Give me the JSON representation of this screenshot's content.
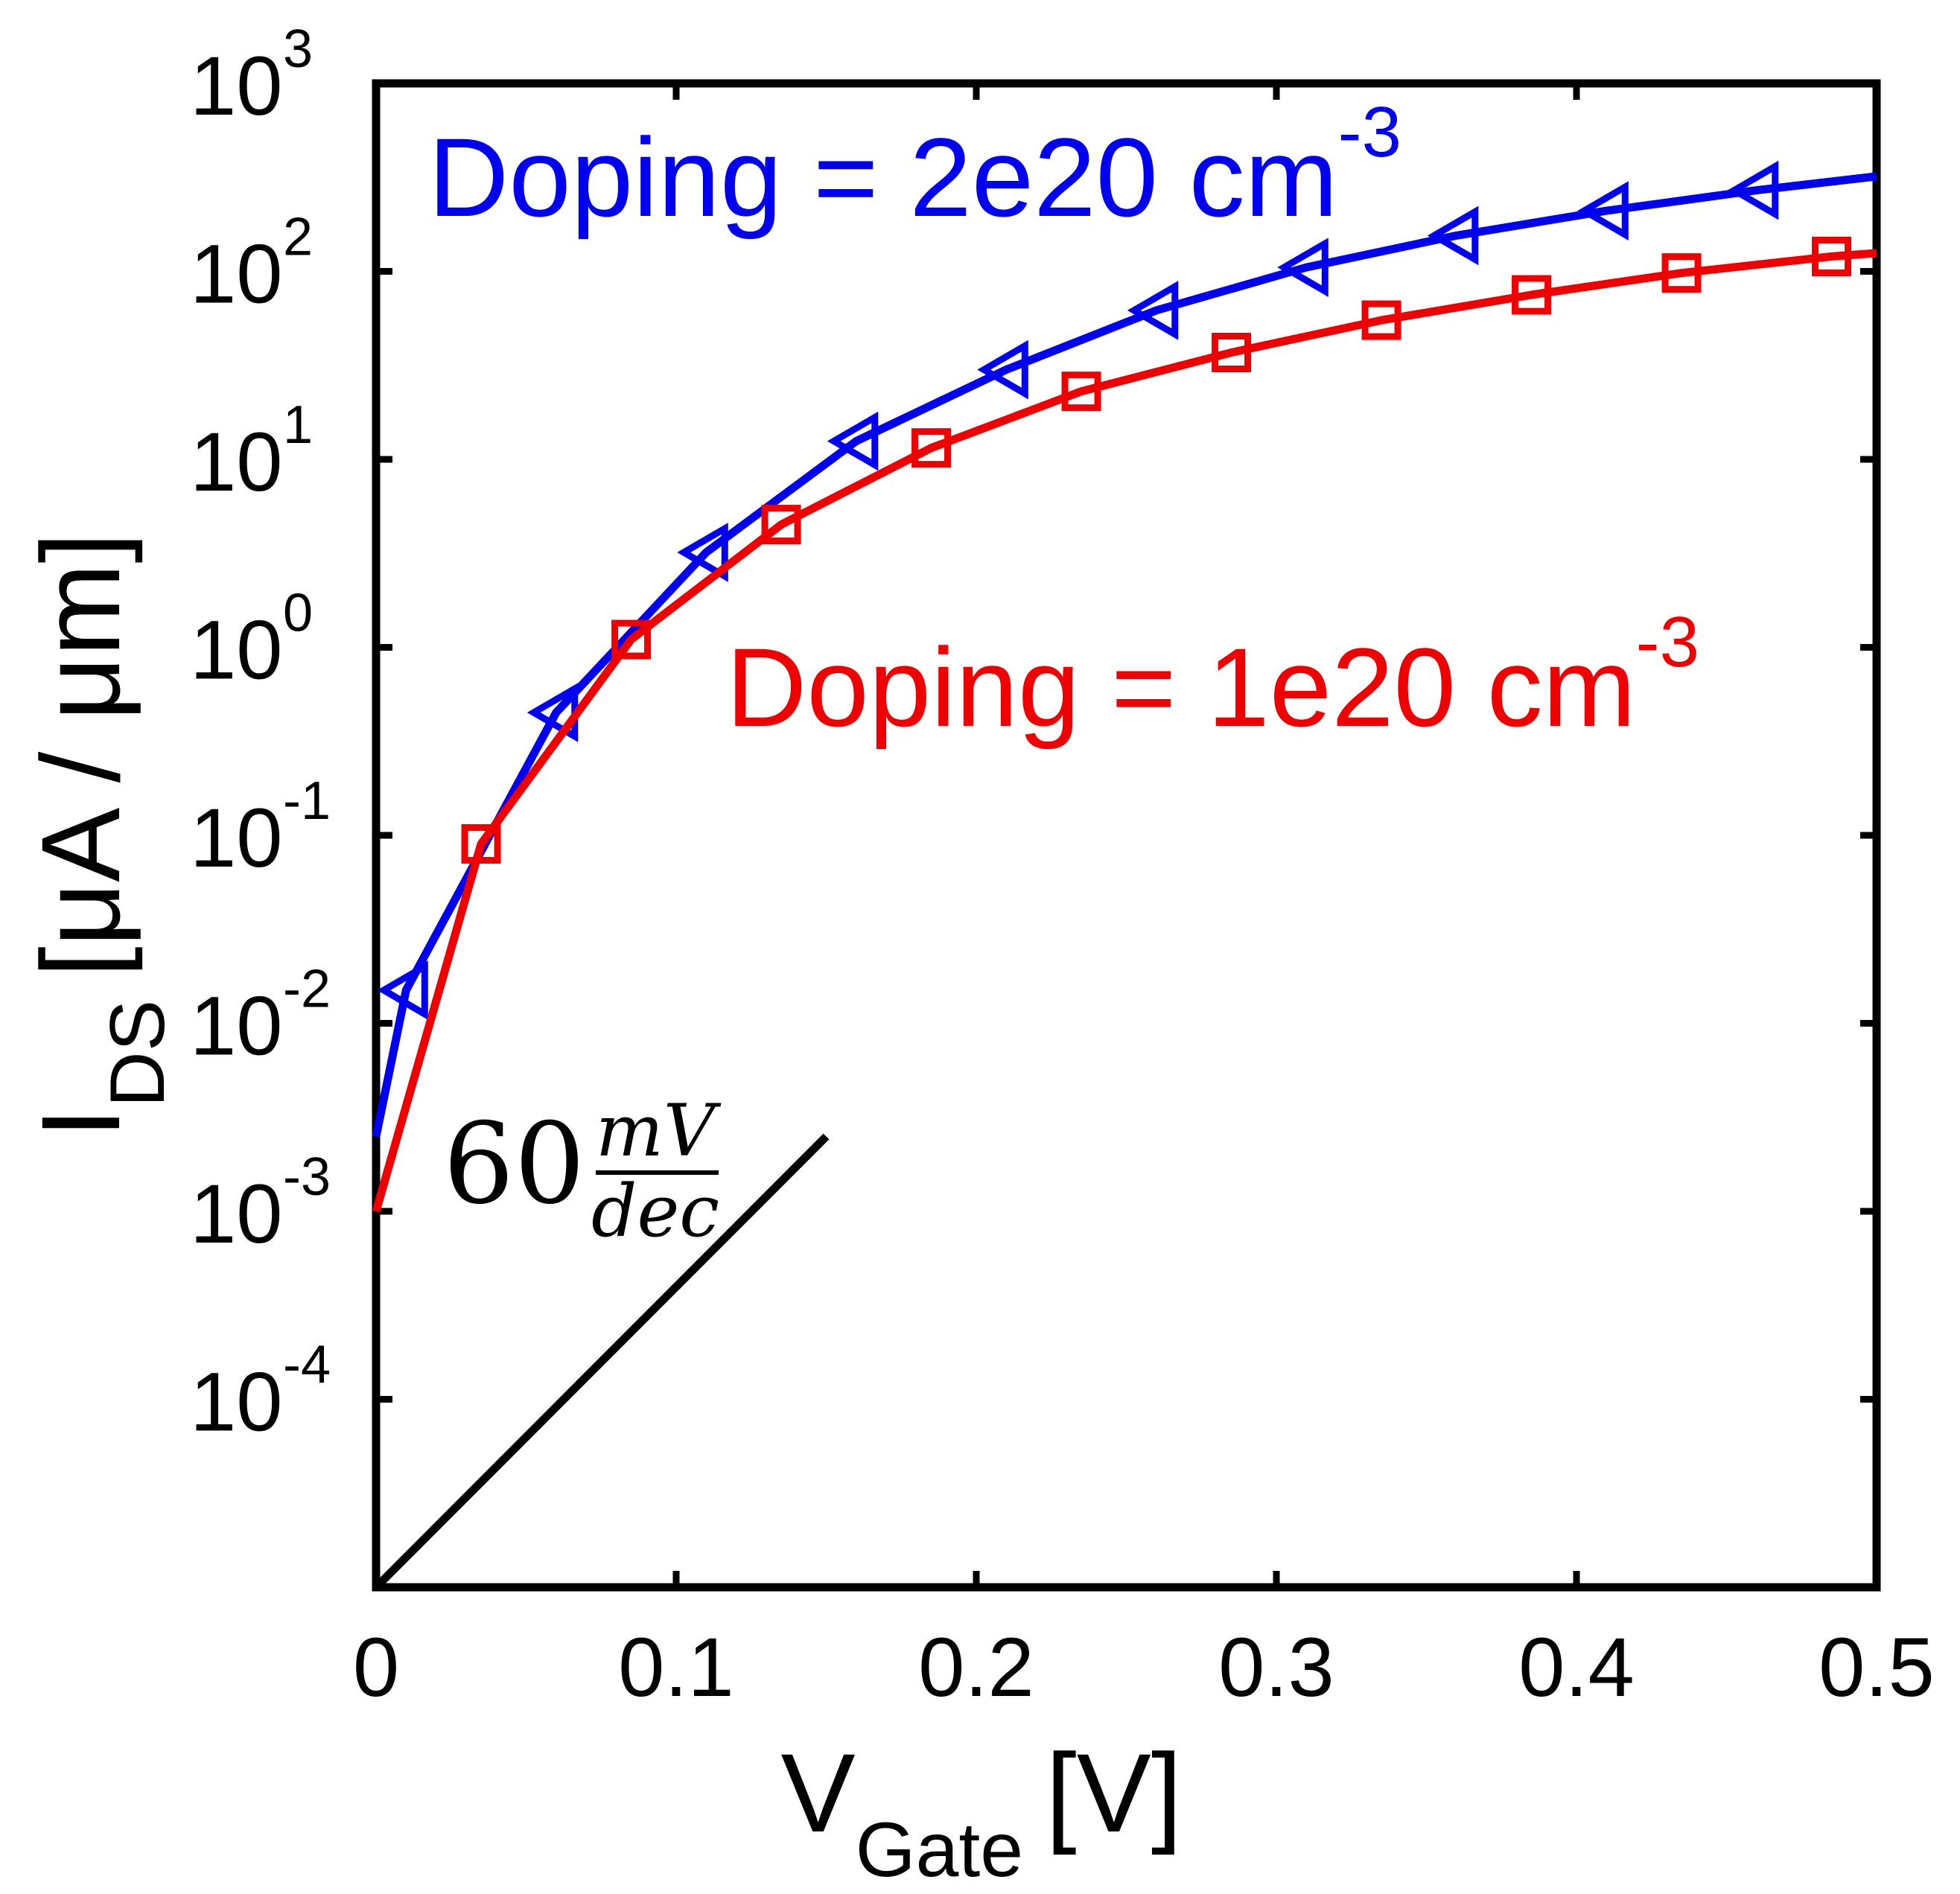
{
  "chart_data": {
    "type": "line",
    "title": "",
    "xlabel": "V",
    "xlabel_sub": "Gate",
    "xlabel_unit": "[V]",
    "ylabel": "I",
    "ylabel_sub": "DS",
    "ylabel_unit": "[μA / μm]",
    "xlim": [
      0,
      0.5
    ],
    "ylim": [
      1e-05,
      1000
    ],
    "yscale": "log",
    "grid": false,
    "x_ticks": [
      "0",
      "0.1",
      "0.2",
      "0.3",
      "0.4",
      "0.5"
    ],
    "y_ticks": [
      {
        "base": "10",
        "exp": "3"
      },
      {
        "base": "10",
        "exp": "2"
      },
      {
        "base": "10",
        "exp": "1"
      },
      {
        "base": "10",
        "exp": "0"
      },
      {
        "base": "10",
        "exp": "-1"
      },
      {
        "base": "10",
        "exp": "-2"
      },
      {
        "base": "10",
        "exp": "-3"
      },
      {
        "base": "10",
        "exp": "-4"
      }
    ],
    "series": [
      {
        "name": "Doping = 2e20 cm",
        "name_sup": "-3",
        "color": "#0000ee",
        "marker": "triangle-left",
        "x": [
          0,
          0.01,
          0.06,
          0.11,
          0.16,
          0.21,
          0.26,
          0.31,
          0.36,
          0.41,
          0.46,
          0.5
        ],
        "y": [
          0.0025,
          0.015,
          0.45,
          3.2,
          12.5,
          30,
          62,
          105,
          155,
          210,
          270,
          320
        ]
      },
      {
        "name": "Doping = 1e20 cm",
        "name_sup": "-3",
        "color": "#ee0000",
        "marker": "square",
        "x": [
          0,
          0.035,
          0.085,
          0.135,
          0.185,
          0.235,
          0.285,
          0.335,
          0.385,
          0.435,
          0.485,
          0.5
        ],
        "y": [
          0.001,
          0.09,
          1.1,
          4.5,
          11.5,
          23,
          37,
          55,
          75,
          98,
          120,
          125
        ]
      }
    ],
    "reference_line": {
      "label": "60",
      "label_num": "mV",
      "label_den": "dec",
      "color": "#000000",
      "x": [
        0,
        0.15
      ],
      "y": [
        1e-05,
        0.0025
      ]
    }
  }
}
